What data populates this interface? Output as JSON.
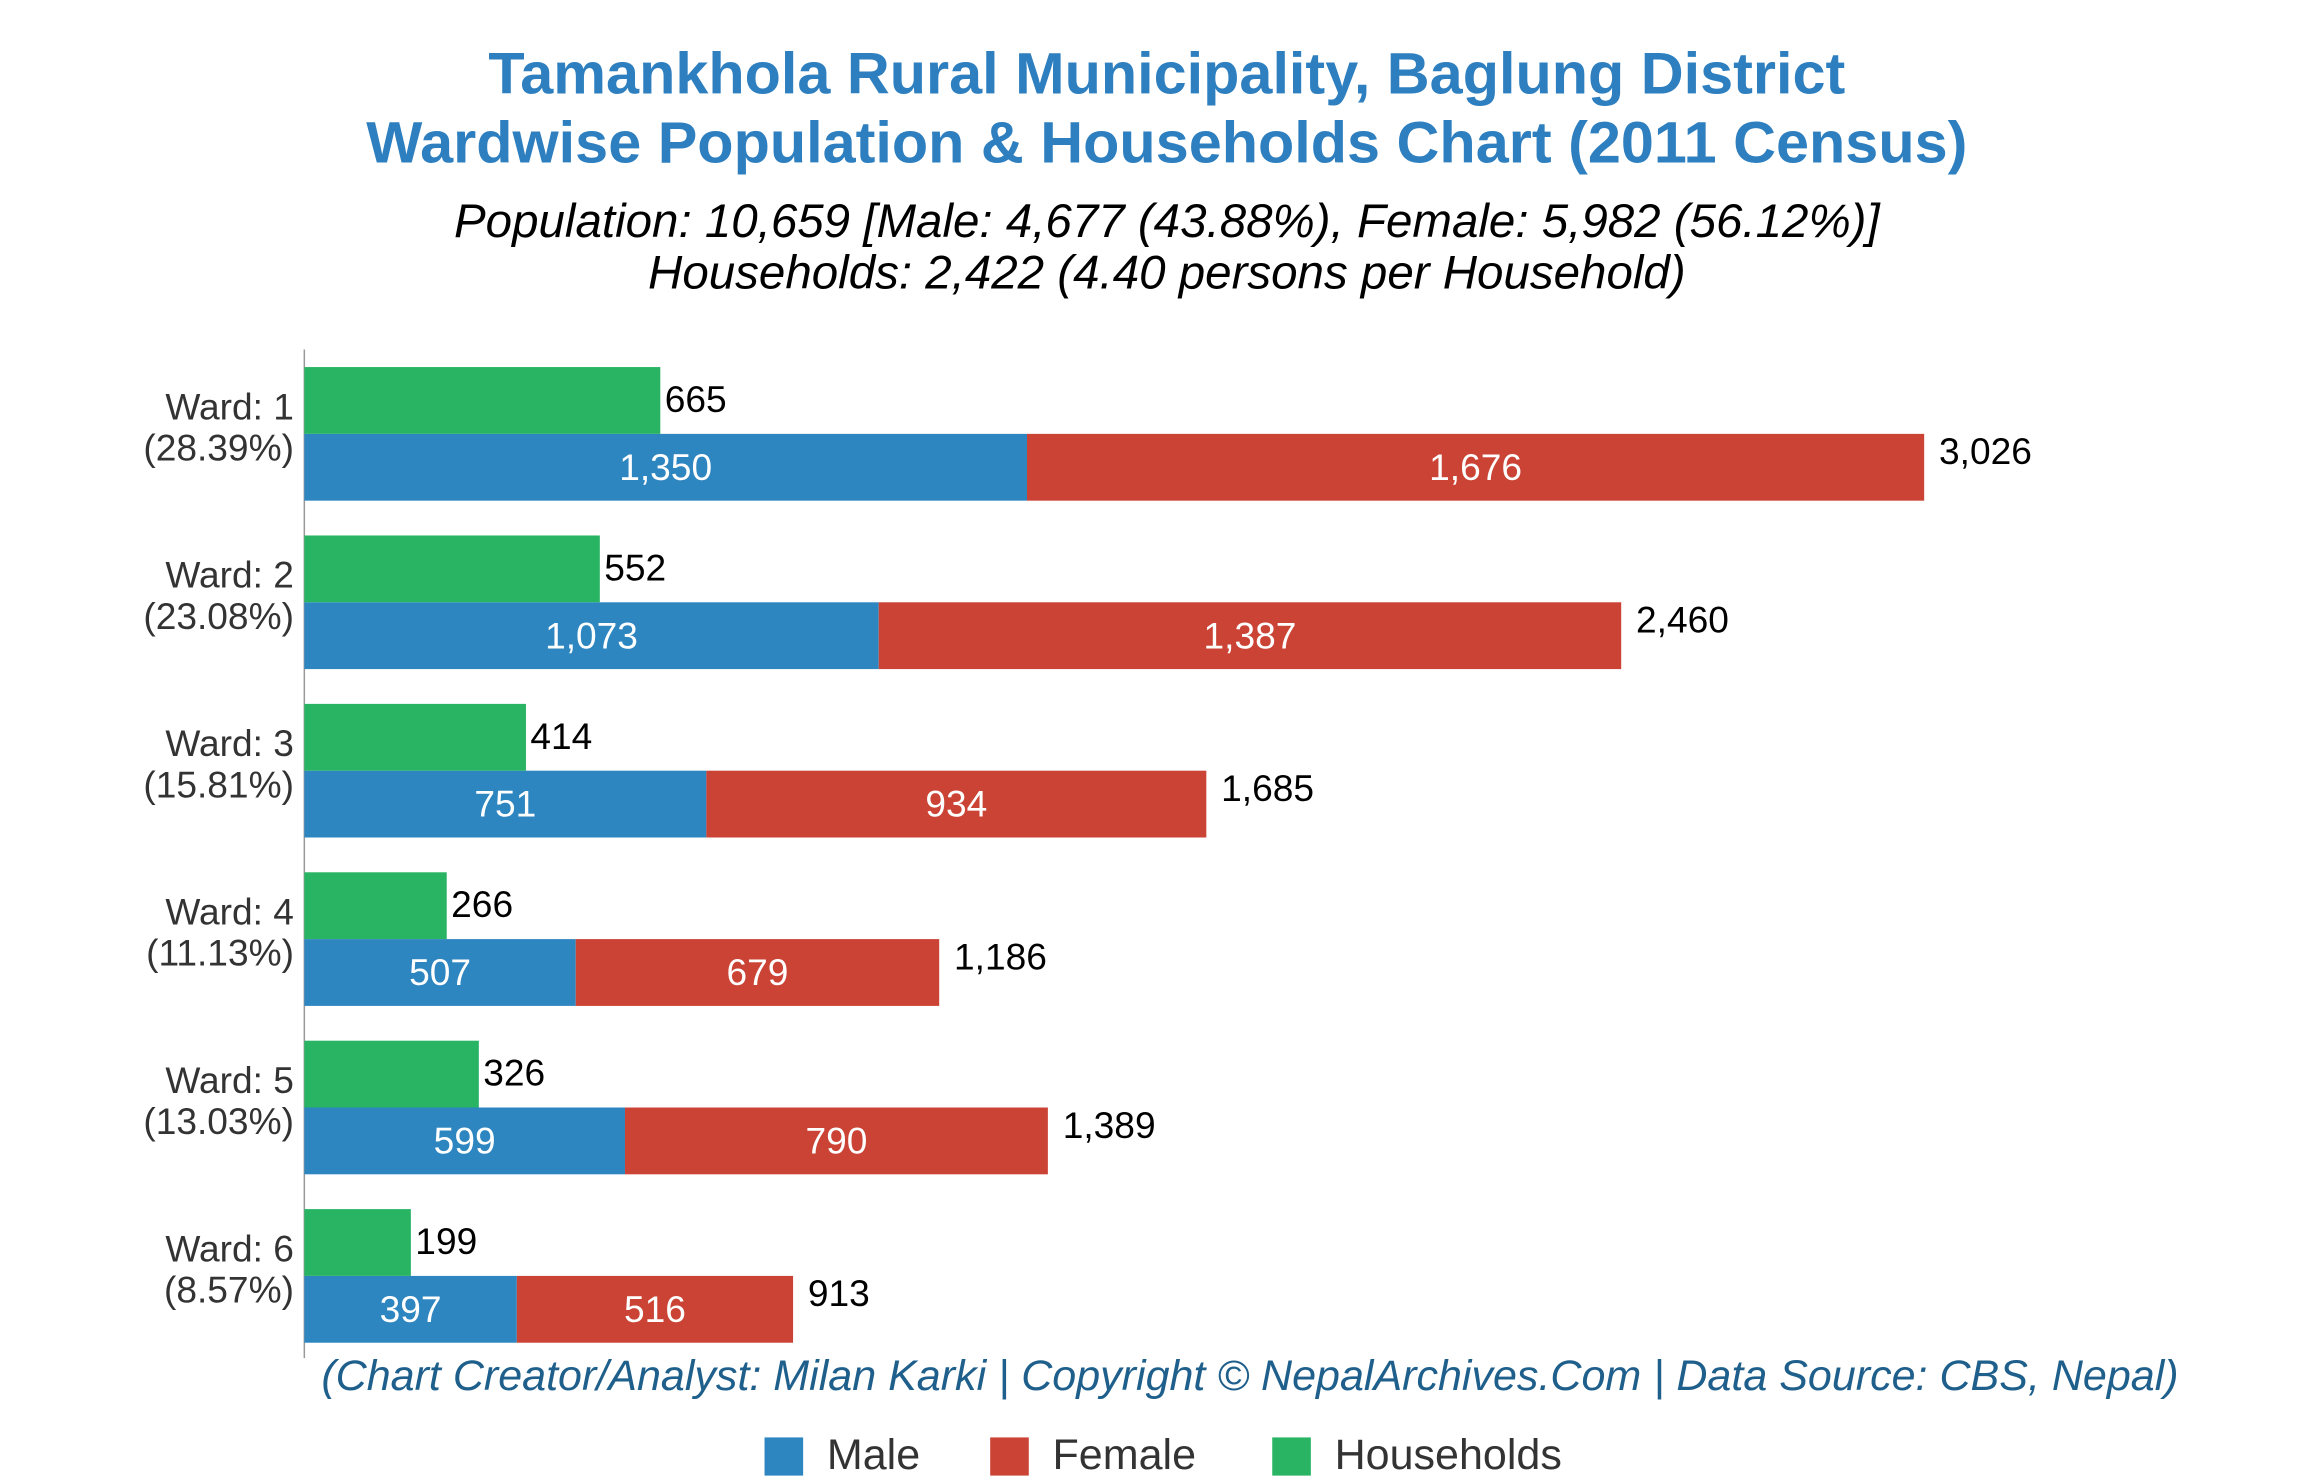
{
  "chart_data": {
    "type": "bar",
    "orientation": "horizontal",
    "title": [
      "Tamankhola Rural Municipality, Baglung District",
      "Wardwise Population & Households Chart (2011 Census)"
    ],
    "subtitle": [
      "Population: 10,659 [Male: 4,677 (43.88%), Female: 5,982 (56.12%)]",
      "Households: 2,422 (4.40 persons per Household)"
    ],
    "footer": "(Chart Creator/Analyst: Milan Karki | Copyright © NepalArchives.Com | Data Source: CBS, Nepal)",
    "categories": [
      "Ward: 1",
      "Ward: 2",
      "Ward: 3",
      "Ward: 4",
      "Ward: 5",
      "Ward: 6"
    ],
    "category_shares": [
      "(28.39%)",
      "(23.08%)",
      "(15.81%)",
      "(11.13%)",
      "(13.03%)",
      "(8.57%)"
    ],
    "series": [
      {
        "name": "Male",
        "color": "#2e86c1",
        "stack": "population",
        "values": [
          1350,
          1073,
          751,
          507,
          599,
          397
        ],
        "value_labels": [
          "1,350",
          "1,073",
          "751",
          "507",
          "599",
          "397"
        ]
      },
      {
        "name": "Female",
        "color": "#cb4335",
        "stack": "population",
        "values": [
          1676,
          1387,
          934,
          679,
          790,
          516
        ],
        "value_labels": [
          "1,676",
          "1,387",
          "934",
          "679",
          "790",
          "516"
        ]
      },
      {
        "name": "Households",
        "color": "#28b463",
        "stack": "households",
        "values": [
          665,
          552,
          414,
          266,
          326,
          199
        ]
      }
    ],
    "totals": {
      "values": [
        3026,
        2460,
        1685,
        1186,
        1389,
        913
      ],
      "value_labels": [
        "3,026",
        "2,460",
        "1,685",
        "1,186",
        "1,389",
        "913"
      ]
    },
    "xlim": [
      0,
      3730
    ],
    "legend": "bottom"
  }
}
